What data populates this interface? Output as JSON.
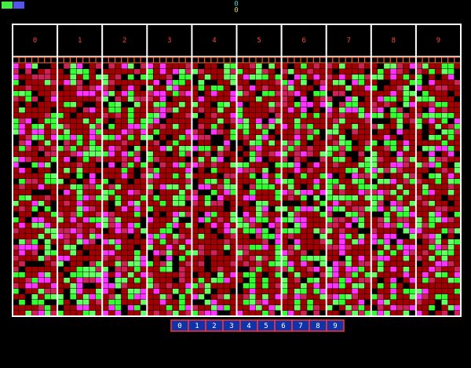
{
  "status": [
    "0",
    "0"
  ],
  "columns": [
    0,
    1,
    2,
    3,
    4,
    5,
    6,
    7,
    8,
    9
  ],
  "buttons": [
    0,
    1,
    2,
    3,
    4,
    5,
    6,
    7,
    8,
    9
  ]
}
